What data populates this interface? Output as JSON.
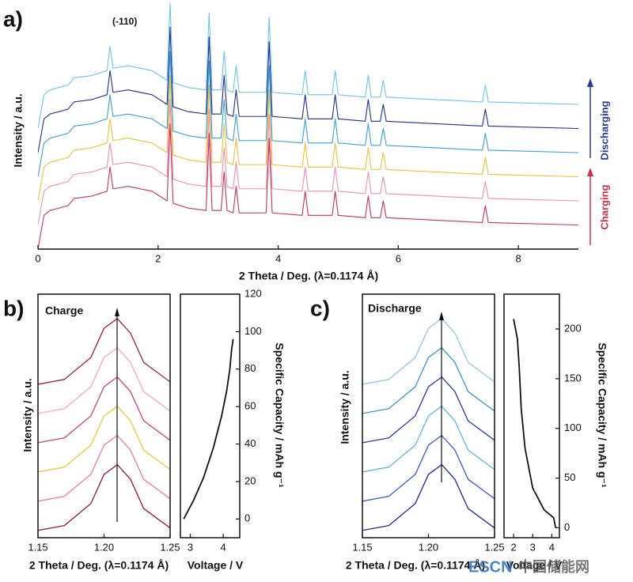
{
  "chart_data": [
    {
      "type": "waterfall",
      "panel_label": "a)",
      "xlabel": "2 Theta / Deg. (λ=0.1174 Å)",
      "ylabel": "Intensity / a.u.",
      "annotations": [
        "(-110)",
        "Discharging",
        "Charging"
      ],
      "xlim": [
        0,
        9
      ],
      "xticks": [
        0,
        2,
        4,
        6,
        8
      ],
      "ylim": [
        0,
        100
      ],
      "x": [
        0,
        0.1,
        0.2,
        0.5,
        0.6,
        0.9,
        1.15,
        1.2,
        1.25,
        1.5,
        1.9,
        2.15,
        2.2,
        2.25,
        2.5,
        2.8,
        2.85,
        2.9,
        3.05,
        3.1,
        3.15,
        3.25,
        3.3,
        3.35,
        3.8,
        3.85,
        3.9,
        4.4,
        4.45,
        4.5,
        4.9,
        4.95,
        5.0,
        5.45,
        5.5,
        5.55,
        5.7,
        5.75,
        5.8,
        7.4,
        7.45,
        7.5,
        9
      ],
      "series": [
        {
          "color": "#c8325a",
          "values": [
            0,
            14,
            16,
            18,
            21,
            22,
            24,
            34,
            25,
            26,
            24,
            20,
            52,
            19,
            17,
            16,
            48,
            16,
            16,
            32,
            16,
            15,
            26,
            15,
            15,
            46,
            15,
            14,
            24,
            14,
            14,
            24,
            14,
            13,
            22,
            13,
            13,
            20,
            13,
            11,
            18,
            11,
            10
          ]
        },
        {
          "color": "#f08fb0",
          "values": [
            10,
            24,
            26,
            28,
            31,
            32,
            34,
            44,
            35,
            36,
            34,
            30,
            62,
            29,
            27,
            26,
            58,
            26,
            26,
            42,
            26,
            25,
            36,
            25,
            25,
            56,
            25,
            24,
            34,
            24,
            24,
            34,
            24,
            23,
            32,
            23,
            23,
            30,
            23,
            21,
            28,
            21,
            20
          ]
        },
        {
          "color": "#e8c23a",
          "values": [
            20,
            34,
            36,
            38,
            41,
            42,
            44,
            54,
            45,
            46,
            44,
            40,
            72,
            39,
            37,
            36,
            68,
            36,
            36,
            52,
            36,
            35,
            46,
            35,
            35,
            66,
            35,
            34,
            44,
            34,
            34,
            44,
            34,
            33,
            42,
            33,
            33,
            40,
            33,
            31,
            38,
            31,
            30
          ]
        },
        {
          "color": "#3aa0d8",
          "values": [
            30,
            44,
            46,
            48,
            51,
            52,
            54,
            64,
            55,
            56,
            54,
            50,
            82,
            49,
            47,
            46,
            78,
            46,
            46,
            62,
            46,
            45,
            56,
            45,
            45,
            76,
            45,
            44,
            54,
            44,
            44,
            54,
            44,
            43,
            52,
            43,
            43,
            50,
            43,
            41,
            48,
            41,
            40
          ]
        },
        {
          "color": "#1f2f8f",
          "values": [
            40,
            54,
            56,
            58,
            61,
            62,
            64,
            74,
            65,
            66,
            64,
            60,
            92,
            59,
            57,
            56,
            88,
            56,
            56,
            72,
            56,
            55,
            66,
            55,
            55,
            86,
            55,
            54,
            64,
            54,
            54,
            64,
            54,
            53,
            62,
            53,
            53,
            60,
            53,
            51,
            58,
            51,
            50
          ]
        },
        {
          "color": "#6cc4e8",
          "values": [
            50,
            64,
            66,
            68,
            71,
            72,
            74,
            84,
            75,
            76,
            74,
            70,
            102,
            69,
            67,
            66,
            98,
            66,
            66,
            82,
            66,
            65,
            76,
            65,
            65,
            96,
            65,
            64,
            74,
            64,
            64,
            74,
            64,
            63,
            72,
            63,
            63,
            70,
            63,
            61,
            68,
            61,
            60
          ]
        }
      ]
    },
    {
      "type": "waterfall",
      "panel_label": "b)",
      "annotations": [
        "Charge"
      ],
      "xlabel": "2 Theta / Deg. (λ=0.1174 Å)",
      "ylabel": "Intensity / a.u.",
      "xlim": [
        1.15,
        1.25
      ],
      "xticks": [
        1.15,
        {
          "value": 1.2,
          "label": "1.20"
        },
        1.25
      ],
      "ylim": [
        0,
        100
      ],
      "x": [
        1.15,
        1.17,
        1.19,
        1.2,
        1.21,
        1.22,
        1.23,
        1.25
      ],
      "series": [
        {
          "color": "#8b1a3a",
          "values": [
            3,
            5,
            14,
            26,
            30,
            24,
            12,
            4
          ]
        },
        {
          "color": "#e87ca8",
          "values": [
            15,
            17,
            26,
            38,
            42,
            36,
            24,
            16
          ]
        },
        {
          "color": "#e8c93a",
          "values": [
            27,
            29,
            38,
            50,
            54,
            48,
            36,
            28
          ]
        },
        {
          "color": "#c2457a",
          "values": [
            39,
            41,
            50,
            62,
            66,
            60,
            48,
            40
          ]
        },
        {
          "color": "#f1a7c4",
          "values": [
            51,
            53,
            62,
            74,
            78,
            72,
            60,
            52
          ]
        },
        {
          "color": "#a0203c",
          "values": [
            63,
            65,
            74,
            86,
            90,
            84,
            72,
            64
          ]
        }
      ]
    },
    {
      "type": "line",
      "xlabel": "Voltage / V",
      "ylabel": "Specific Capacity / mAh g⁻¹",
      "color": "#111111",
      "xlim": [
        2.7,
        4.5
      ],
      "xticks": [
        3,
        4
      ],
      "ylim": [
        -10,
        120
      ],
      "yticks": [
        0,
        20,
        40,
        60,
        80,
        100,
        120
      ],
      "x": [
        2.8,
        3.1,
        3.4,
        3.7,
        3.95,
        4.1,
        4.2,
        4.25,
        4.3
      ],
      "values": [
        0,
        10,
        22,
        38,
        55,
        68,
        80,
        90,
        96
      ]
    },
    {
      "type": "waterfall",
      "panel_label": "c)",
      "annotations": [
        "Discharge"
      ],
      "xlabel": "2 Theta / Deg. (λ=0.1174 Å)",
      "ylabel": "Intensity / a.u.",
      "xlim": [
        1.15,
        1.25
      ],
      "xticks": [
        1.15,
        {
          "value": 1.2,
          "label": "1.20"
        },
        1.25
      ],
      "ylim": [
        0,
        100
      ],
      "x": [
        1.15,
        1.17,
        1.19,
        1.2,
        1.21,
        1.22,
        1.23,
        1.25
      ],
      "series": [
        {
          "color": "#1c2a8a",
          "values": [
            3,
            5,
            14,
            26,
            30,
            24,
            12,
            4
          ]
        },
        {
          "color": "#3a5cc8",
          "values": [
            15,
            17,
            26,
            38,
            42,
            36,
            24,
            16
          ]
        },
        {
          "color": "#5fb7d6",
          "values": [
            27,
            29,
            38,
            50,
            54,
            48,
            36,
            28
          ]
        },
        {
          "color": "#2a3a9a",
          "values": [
            39,
            41,
            50,
            62,
            66,
            60,
            48,
            40
          ]
        },
        {
          "color": "#3a9ab8",
          "values": [
            51,
            53,
            62,
            74,
            78,
            72,
            60,
            52
          ]
        },
        {
          "color": "#8fc8e0",
          "values": [
            63,
            65,
            74,
            86,
            90,
            84,
            72,
            64
          ]
        }
      ]
    },
    {
      "type": "line",
      "xlabel": "Voltage / V",
      "ylabel": "Specific Capacity / mAh g⁻¹",
      "color": "#111111",
      "xlim": [
        1.5,
        4.4
      ],
      "xticks": [
        2,
        3,
        4
      ],
      "ylim": [
        -10,
        235
      ],
      "yticks": [
        0,
        50,
        100,
        150,
        200
      ],
      "x": [
        4.2,
        4.1,
        3.6,
        3.0,
        2.6,
        2.4,
        2.3,
        2.2,
        2.05,
        2.0
      ],
      "values": [
        0,
        10,
        18,
        40,
        80,
        120,
        160,
        190,
        205,
        210
      ]
    }
  ],
  "watermark": [
    "ESCN",
    "中国储能网"
  ]
}
